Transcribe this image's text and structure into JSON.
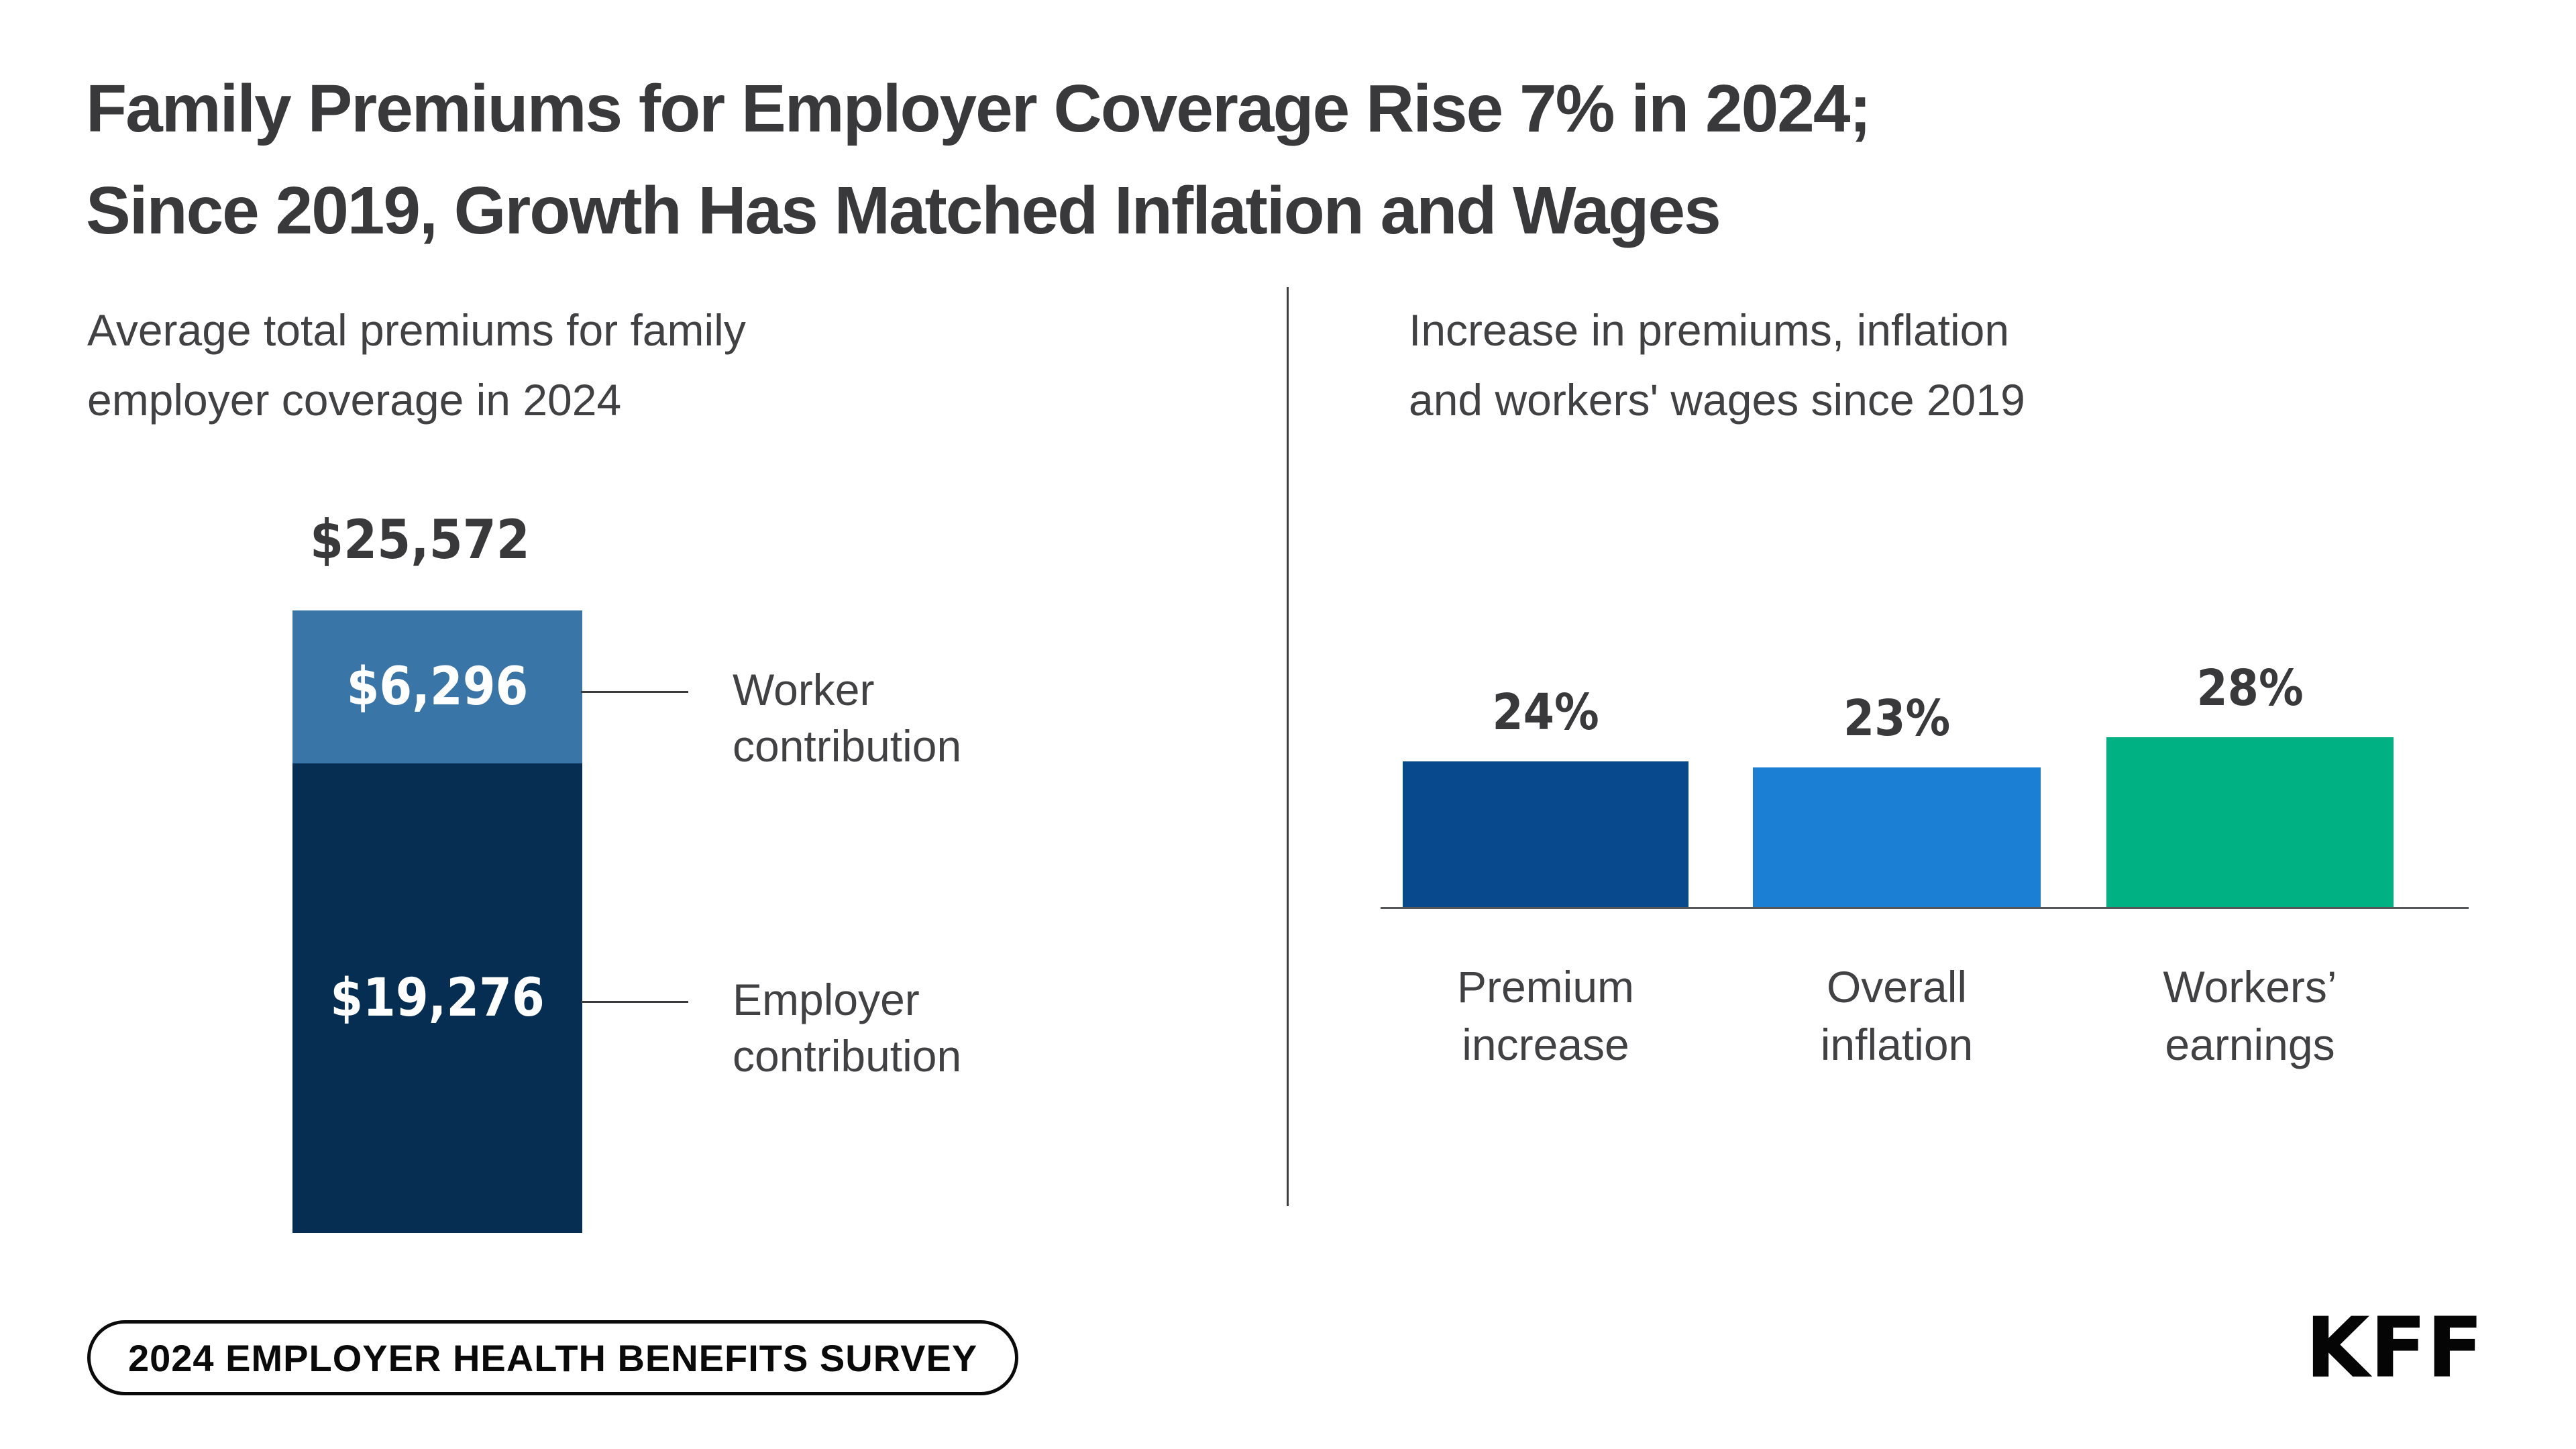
{
  "title": {
    "lines": [
      "Family Premiums for Employer Coverage Rise 7% in 2024;",
      "Since 2019, Growth Has Matched Inflation and Wages"
    ]
  },
  "left_panel": {
    "subtitle_lines": [
      "Average total premiums for family",
      "employer coverage in 2024"
    ],
    "total_label": "$25,572",
    "total_value": 25572,
    "segments": [
      {
        "name": "Worker contribution",
        "label_lines": [
          "Worker",
          "contribution"
        ],
        "value": 6296,
        "value_label": "$6,296",
        "color": "#3A75A8"
      },
      {
        "name": "Employer contribution",
        "label_lines": [
          "Employer",
          "contribution"
        ],
        "value": 19276,
        "value_label": "$19,276",
        "color": "#052E52"
      }
    ]
  },
  "right_panel": {
    "subtitle_lines": [
      "Increase in premiums, inflation",
      "and workers' wages since 2019"
    ],
    "bars": [
      {
        "label_lines": [
          "Premium",
          "increase"
        ],
        "value": 24,
        "value_label": "24%",
        "color": "#07498C"
      },
      {
        "label_lines": [
          "Overall",
          "inflation"
        ],
        "value": 23,
        "value_label": "23%",
        "color": "#1B80D4"
      },
      {
        "label_lines": [
          "Workers’",
          "earnings"
        ],
        "value": 28,
        "value_label": "28%",
        "color": "#00B183"
      }
    ]
  },
  "footer": {
    "badge_label": "2024 EMPLOYER HEALTH BENEFITS SURVEY",
    "logo_text": "KFF"
  },
  "chart_data": [
    {
      "type": "bar",
      "subtype": "stacked_single_column",
      "title": "Average total premiums for family employer coverage in 2024",
      "categories": [
        "Family employer coverage 2024"
      ],
      "series": [
        {
          "name": "Worker contribution",
          "values": [
            6296
          ],
          "color": "#3A75A8"
        },
        {
          "name": "Employer contribution",
          "values": [
            19276
          ],
          "color": "#052E52"
        }
      ],
      "total": 25572,
      "unit": "USD",
      "value_labels": [
        "$6,296",
        "$19,276"
      ],
      "total_label": "$25,572",
      "grid": false,
      "legend_position": "right-callouts"
    },
    {
      "type": "bar",
      "title": "Increase in premiums, inflation and workers' wages since 2019",
      "categories": [
        "Premium increase",
        "Overall inflation",
        "Workers’ earnings"
      ],
      "values": [
        24,
        23,
        28
      ],
      "value_labels": [
        "24%",
        "23%",
        "28%"
      ],
      "colors": [
        "#07498C",
        "#1B80D4",
        "#00B183"
      ],
      "unit": "percent",
      "ylim": [
        0,
        30
      ],
      "grid": false,
      "xlabel": "",
      "ylabel": ""
    }
  ]
}
